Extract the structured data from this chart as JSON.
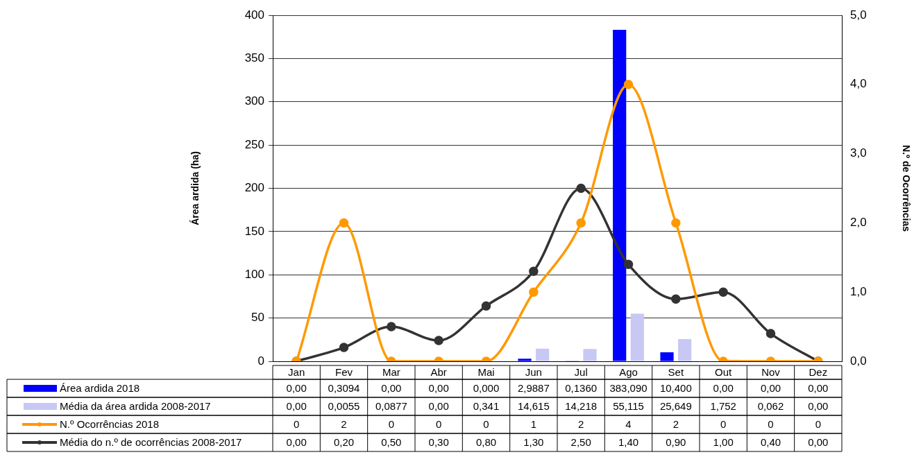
{
  "chart_data": {
    "type": "bar",
    "categories": [
      "Jan",
      "Fev",
      "Mar",
      "Abr",
      "Mai",
      "Jun",
      "Jul",
      "Ago",
      "Set",
      "Out",
      "Nov",
      "Dez"
    ],
    "series": [
      {
        "name": "Área ardida 2018",
        "color": "#0000ff",
        "values": [
          0,
          0.3094,
          0,
          0,
          0,
          2.9887,
          0.136,
          383.09,
          10.4,
          0,
          0,
          0
        ],
        "value_labels": [
          "0,00",
          "0,3094",
          "0,00",
          "0,00",
          "0,000",
          "2,9887",
          "0,1360",
          "383,090",
          "10,400",
          "0,00",
          "0,00",
          "0,00"
        ]
      },
      {
        "name": "Média da área ardida 2008-2017",
        "color": "#c8c8f4",
        "values": [
          0,
          0.0055,
          0.0877,
          0,
          0.341,
          14.615,
          14.218,
          55.115,
          25.649,
          1.752,
          0.062,
          0
        ],
        "value_labels": [
          "0,00",
          "0,0055",
          "0,0877",
          "0,00",
          "0,341",
          "14,615",
          "14,218",
          "55,115",
          "25,649",
          "1,752",
          "0,062",
          "0,00"
        ]
      },
      {
        "name": "N.º Ocorrências 2018",
        "type": "line",
        "axis": "y2",
        "color": "#ff9900",
        "values": [
          0,
          2,
          0,
          0,
          0,
          1,
          2,
          4,
          2,
          0,
          0,
          0
        ],
        "value_labels": [
          "0",
          "2",
          "0",
          "0",
          "0",
          "1",
          "2",
          "4",
          "2",
          "0",
          "0",
          "0"
        ]
      },
      {
        "name": "Média do n.º de ocorrências 2008-2017",
        "type": "line",
        "axis": "y2",
        "color": "#333333",
        "values": [
          0,
          0.2,
          0.5,
          0.3,
          0.8,
          1.3,
          2.5,
          1.4,
          0.9,
          1.0,
          0.4,
          0
        ],
        "value_labels": [
          "0,00",
          "0,20",
          "0,50",
          "0,30",
          "0,80",
          "1,30",
          "2,50",
          "1,40",
          "0,90",
          "1,00",
          "0,40",
          "0,00"
        ]
      }
    ],
    "ylabel": "Área ardida (ha)",
    "y2label": "N.º de Ocorrências",
    "ylim": [
      0,
      400
    ],
    "yticks": [
      0,
      50,
      100,
      150,
      200,
      250,
      300,
      350,
      400
    ],
    "y2lim": [
      0,
      5
    ],
    "y2ticks": [
      {
        "value": 0,
        "label": "0,0"
      },
      {
        "value": 1,
        "label": "1,0"
      },
      {
        "value": 2,
        "label": "2,0"
      },
      {
        "value": 3,
        "label": "3,0"
      },
      {
        "value": 4,
        "label": "4,0"
      },
      {
        "value": 5,
        "label": "5,0"
      }
    ],
    "grid": "y",
    "legend": "bottom",
    "marker": "circle",
    "line_style": "solid"
  }
}
